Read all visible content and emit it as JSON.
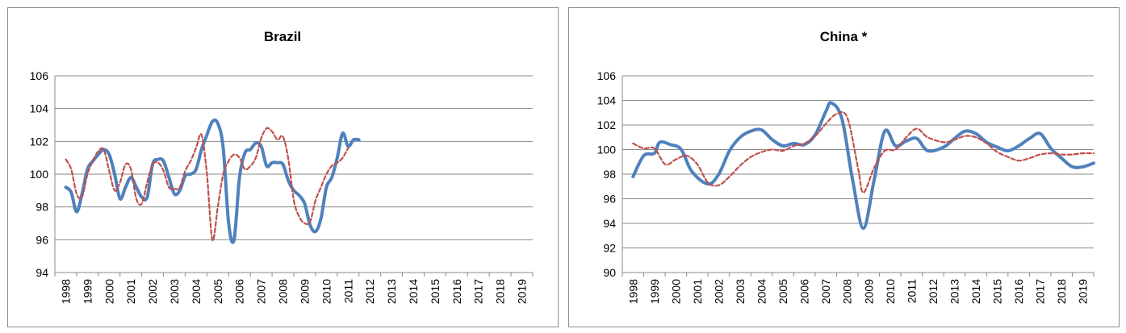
{
  "chart_data": [
    {
      "type": "line",
      "title": "Brazil",
      "xlabel": "",
      "ylabel": "",
      "ylim": [
        94,
        106
      ],
      "yticks": [
        94,
        96,
        98,
        100,
        102,
        104,
        106
      ],
      "categories": [
        "1998",
        "1999",
        "2000",
        "2001",
        "2002",
        "2003",
        "2004",
        "2005",
        "2006",
        "2007",
        "2008",
        "2009",
        "2010",
        "2011",
        "2012",
        "2013",
        "2014",
        "2015",
        "2016",
        "2017",
        "2018",
        "2019"
      ],
      "grid": true,
      "legend": "none",
      "series": [
        {
          "style": "solid",
          "color": "#4f81bd",
          "points": [
            [
              1998.0,
              99.2
            ],
            [
              1998.25,
              98.9
            ],
            [
              1998.5,
              97.7
            ],
            [
              1998.75,
              98.8
            ],
            [
              1999.0,
              100.3
            ],
            [
              1999.25,
              100.8
            ],
            [
              1999.5,
              101.2
            ],
            [
              1999.75,
              101.5
            ],
            [
              2000.0,
              101.2
            ],
            [
              2000.25,
              100.0
            ],
            [
              2000.5,
              98.5
            ],
            [
              2000.75,
              99.2
            ],
            [
              2001.0,
              99.8
            ],
            [
              2001.25,
              99.2
            ],
            [
              2001.5,
              98.6
            ],
            [
              2001.75,
              98.6
            ],
            [
              2002.0,
              100.6
            ],
            [
              2002.25,
              100.9
            ],
            [
              2002.5,
              100.8
            ],
            [
              2002.75,
              99.8
            ],
            [
              2003.0,
              98.8
            ],
            [
              2003.25,
              99.0
            ],
            [
              2003.5,
              99.9
            ],
            [
              2003.75,
              100.0
            ],
            [
              2004.0,
              100.3
            ],
            [
              2004.25,
              101.5
            ],
            [
              2004.5,
              102.4
            ],
            [
              2004.75,
              103.2
            ],
            [
              2005.0,
              103.1
            ],
            [
              2005.25,
              101.6
            ],
            [
              2005.5,
              97.0
            ],
            [
              2005.75,
              96.0
            ],
            [
              2006.0,
              99.8
            ],
            [
              2006.25,
              101.3
            ],
            [
              2006.5,
              101.5
            ],
            [
              2006.75,
              101.9
            ],
            [
              2007.0,
              101.7
            ],
            [
              2007.25,
              100.5
            ],
            [
              2007.5,
              100.7
            ],
            [
              2007.75,
              100.7
            ],
            [
              2008.0,
              100.6
            ],
            [
              2008.25,
              99.6
            ],
            [
              2008.5,
              99.0
            ],
            [
              2008.75,
              98.7
            ],
            [
              2009.0,
              98.2
            ],
            [
              2009.25,
              96.9
            ],
            [
              2009.5,
              96.5
            ],
            [
              2009.75,
              97.3
            ],
            [
              2010.0,
              99.2
            ],
            [
              2010.25,
              99.8
            ],
            [
              2010.5,
              101.0
            ],
            [
              2010.75,
              102.5
            ],
            [
              2011.0,
              101.7
            ],
            [
              2011.25,
              102.1
            ],
            [
              2011.5,
              102.1
            ]
          ]
        },
        {
          "style": "dashed",
          "color": "#c0504d",
          "points": [
            [
              1998.0,
              100.9
            ],
            [
              1998.25,
              100.3
            ],
            [
              1998.5,
              98.8
            ],
            [
              1998.75,
              98.6
            ],
            [
              1999.0,
              100.0
            ],
            [
              1999.25,
              100.8
            ],
            [
              1999.5,
              101.4
            ],
            [
              1999.75,
              101.5
            ],
            [
              2000.0,
              100.2
            ],
            [
              2000.25,
              99.0
            ],
            [
              2000.5,
              99.5
            ],
            [
              2000.75,
              100.6
            ],
            [
              2001.0,
              100.3
            ],
            [
              2001.25,
              98.5
            ],
            [
              2001.5,
              98.2
            ],
            [
              2001.75,
              99.5
            ],
            [
              2002.0,
              100.6
            ],
            [
              2002.25,
              100.7
            ],
            [
              2002.5,
              100.2
            ],
            [
              2002.75,
              99.2
            ],
            [
              2003.0,
              99.1
            ],
            [
              2003.25,
              99.2
            ],
            [
              2003.5,
              100.2
            ],
            [
              2003.75,
              100.8
            ],
            [
              2004.0,
              101.6
            ],
            [
              2004.25,
              102.4
            ],
            [
              2004.5,
              100.0
            ],
            [
              2004.75,
              96.0
            ],
            [
              2005.0,
              98.0
            ],
            [
              2005.25,
              100.0
            ],
            [
              2005.5,
              100.8
            ],
            [
              2005.75,
              101.2
            ],
            [
              2006.0,
              101.0
            ],
            [
              2006.25,
              100.3
            ],
            [
              2006.5,
              100.5
            ],
            [
              2006.75,
              101.0
            ],
            [
              2007.0,
              102.2
            ],
            [
              2007.25,
              102.8
            ],
            [
              2007.5,
              102.6
            ],
            [
              2007.75,
              102.1
            ],
            [
              2008.0,
              102.3
            ],
            [
              2008.25,
              100.9
            ],
            [
              2008.5,
              98.4
            ],
            [
              2008.75,
              97.4
            ],
            [
              2009.0,
              97.0
            ],
            [
              2009.25,
              97.1
            ],
            [
              2009.5,
              98.4
            ],
            [
              2009.75,
              99.2
            ],
            [
              2010.0,
              100.0
            ],
            [
              2010.25,
              100.5
            ],
            [
              2010.5,
              100.7
            ],
            [
              2010.75,
              101.0
            ],
            [
              2011.0,
              101.6
            ]
          ]
        }
      ]
    },
    {
      "type": "line",
      "title": "China *",
      "xlabel": "",
      "ylabel": "",
      "ylim": [
        90,
        106
      ],
      "yticks": [
        90,
        92,
        94,
        96,
        98,
        100,
        102,
        104,
        106
      ],
      "categories": [
        "1998",
        "1999",
        "2000",
        "2001",
        "2002",
        "2003",
        "2004",
        "2005",
        "2006",
        "2007",
        "2008",
        "2009",
        "2010",
        "2011",
        "2012",
        "2013",
        "2014",
        "2015",
        "2016",
        "2017",
        "2018",
        "2019"
      ],
      "grid": true,
      "legend": "none",
      "series": [
        {
          "style": "solid",
          "color": "#4f81bd",
          "points": [
            [
              1998.0,
              97.8
            ],
            [
              1998.5,
              99.5
            ],
            [
              1999.0,
              99.7
            ],
            [
              1999.25,
              100.6
            ],
            [
              1999.75,
              100.4
            ],
            [
              2000.25,
              100.0
            ],
            [
              2000.75,
              98.2
            ],
            [
              2001.5,
              97.2
            ],
            [
              2002.0,
              98.0
            ],
            [
              2002.5,
              99.9
            ],
            [
              2003.0,
              101.0
            ],
            [
              2003.5,
              101.5
            ],
            [
              2004.0,
              101.6
            ],
            [
              2004.5,
              100.8
            ],
            [
              2005.0,
              100.3
            ],
            [
              2005.5,
              100.5
            ],
            [
              2006.0,
              100.4
            ],
            [
              2006.5,
              101.2
            ],
            [
              2007.0,
              103.1
            ],
            [
              2007.25,
              103.8
            ],
            [
              2007.75,
              102.5
            ],
            [
              2008.25,
              97.5
            ],
            [
              2008.75,
              93.6
            ],
            [
              2009.25,
              97.5
            ],
            [
              2009.75,
              101.5
            ],
            [
              2010.25,
              100.3
            ],
            [
              2010.75,
              100.7
            ],
            [
              2011.25,
              100.9
            ],
            [
              2011.75,
              99.9
            ],
            [
              2012.5,
              100.2
            ],
            [
              2013.0,
              100.9
            ],
            [
              2013.5,
              101.5
            ],
            [
              2014.0,
              101.3
            ],
            [
              2014.5,
              100.6
            ],
            [
              2015.0,
              100.2
            ],
            [
              2015.5,
              99.9
            ],
            [
              2016.0,
              100.3
            ],
            [
              2016.5,
              100.9
            ],
            [
              2017.0,
              101.3
            ],
            [
              2017.5,
              100.1
            ],
            [
              2018.0,
              99.3
            ],
            [
              2018.5,
              98.6
            ],
            [
              2019.0,
              98.6
            ],
            [
              2019.5,
              98.9
            ]
          ]
        },
        {
          "style": "dashed",
          "color": "#c0504d",
          "points": [
            [
              1998.0,
              100.5
            ],
            [
              1998.5,
              100.1
            ],
            [
              1999.0,
              100.1
            ],
            [
              1999.5,
              98.8
            ],
            [
              2000.0,
              99.2
            ],
            [
              2000.5,
              99.5
            ],
            [
              2001.0,
              98.8
            ],
            [
              2001.5,
              97.3
            ],
            [
              2002.0,
              97.1
            ],
            [
              2002.5,
              97.8
            ],
            [
              2003.0,
              98.7
            ],
            [
              2003.5,
              99.4
            ],
            [
              2004.0,
              99.8
            ],
            [
              2004.5,
              100.0
            ],
            [
              2005.0,
              99.9
            ],
            [
              2005.5,
              100.3
            ],
            [
              2006.0,
              100.5
            ],
            [
              2006.5,
              101.1
            ],
            [
              2007.0,
              102.1
            ],
            [
              2007.5,
              102.9
            ],
            [
              2008.0,
              102.6
            ],
            [
              2008.5,
              98.5
            ],
            [
              2008.75,
              96.5
            ],
            [
              2009.25,
              98.5
            ],
            [
              2009.75,
              99.9
            ],
            [
              2010.25,
              100.0
            ],
            [
              2010.75,
              101.0
            ],
            [
              2011.25,
              101.7
            ],
            [
              2011.75,
              101.0
            ],
            [
              2012.5,
              100.6
            ],
            [
              2013.0,
              100.8
            ],
            [
              2013.5,
              101.1
            ],
            [
              2014.0,
              101.0
            ],
            [
              2014.5,
              100.5
            ],
            [
              2015.0,
              99.8
            ],
            [
              2015.5,
              99.4
            ],
            [
              2016.0,
              99.1
            ],
            [
              2016.5,
              99.3
            ],
            [
              2017.0,
              99.6
            ],
            [
              2017.5,
              99.7
            ],
            [
              2018.0,
              99.6
            ],
            [
              2018.5,
              99.6
            ],
            [
              2019.0,
              99.7
            ],
            [
              2019.5,
              99.7
            ]
          ]
        }
      ]
    }
  ]
}
